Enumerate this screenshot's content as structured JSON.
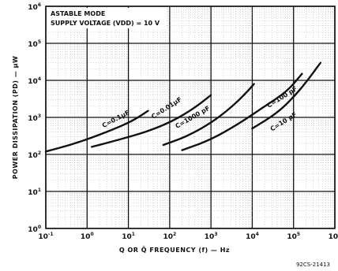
{
  "chart_data": {
    "type": "line",
    "x_scale": "log",
    "y_scale": "log",
    "xlim": [
      0.1,
      1000000
    ],
    "ylim": [
      1,
      1000000
    ],
    "grid": true,
    "annotation_lines": [
      "ASTABLE MODE",
      "SUPPLY VOLTAGE (VDD) = 10 V"
    ],
    "xlabel": "Q OR Q̄ FREQUENCY (f) — Hz",
    "ylabel": "POWER DISSIPATION (PD) — μW",
    "figure_code": "92CS-21413",
    "x_ticks": [
      {
        "base": "10",
        "exp": "-1"
      },
      {
        "base": "10",
        "exp": "0"
      },
      {
        "base": "10",
        "exp": "1"
      },
      {
        "base": "10",
        "exp": "2"
      },
      {
        "base": "10",
        "exp": "3"
      },
      {
        "base": "10",
        "exp": "4"
      },
      {
        "base": "10",
        "exp": "5"
      },
      {
        "base": "10",
        "exp": "6"
      }
    ],
    "y_ticks": [
      {
        "base": "10",
        "exp": "0"
      },
      {
        "base": "10",
        "exp": "1"
      },
      {
        "base": "10",
        "exp": "2"
      },
      {
        "base": "10",
        "exp": "3"
      },
      {
        "base": "10",
        "exp": "4"
      },
      {
        "base": "10",
        "exp": "5"
      },
      {
        "base": "10",
        "exp": "6"
      }
    ],
    "series": [
      {
        "name": "C=0.1μF",
        "x": [
          0.1,
          0.4,
          1.5,
          6,
          15,
          30
        ],
        "y": [
          120,
          180,
          300,
          550,
          900,
          1500
        ]
      },
      {
        "name": "C=0.01μF",
        "x": [
          1.3,
          6,
          30,
          120,
          400,
          1000
        ],
        "y": [
          160,
          250,
          420,
          800,
          1800,
          4000
        ]
      },
      {
        "name": "C=1000pF",
        "x": [
          70,
          250,
          1000,
          3000,
          7000,
          11000
        ],
        "y": [
          180,
          300,
          700,
          1800,
          4500,
          8000
        ]
      },
      {
        "name": "C=100pF",
        "x": [
          200,
          1000,
          5000,
          20000,
          70000,
          160000
        ],
        "y": [
          130,
          250,
          700,
          2000,
          5000,
          15000
        ]
      },
      {
        "name": "C=10pF",
        "x": [
          10000,
          40000,
          100000,
          220000,
          450000
        ],
        "y": [
          500,
          1300,
          3500,
          10000,
          30000
        ]
      }
    ],
    "series_labels": [
      {
        "series": "C=0.1μF",
        "text": "C=0.1μF"
      },
      {
        "series": "C=0.01μF",
        "text": "C=0.01μF"
      },
      {
        "series": "C=1000pF",
        "text": "C=1000 pF"
      },
      {
        "series": "C=100pF",
        "text": "C=100 pF"
      },
      {
        "series": "C=10pF",
        "text": "C=10 pF"
      }
    ]
  }
}
